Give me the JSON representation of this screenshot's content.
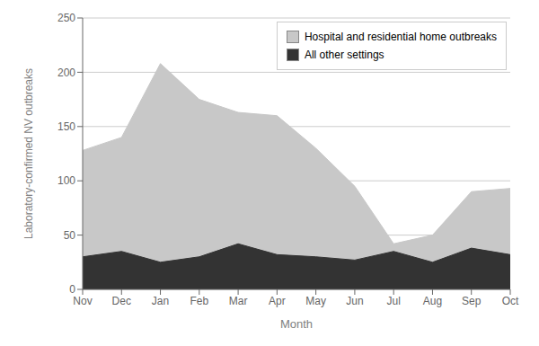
{
  "chart_data": {
    "type": "area",
    "xlabel": "Month",
    "ylabel": "Laboratory-confirmed NV outbreaks",
    "categories": [
      "Nov",
      "Dec",
      "Jan",
      "Feb",
      "Mar",
      "Apr",
      "May",
      "Jun",
      "Jul",
      "Aug",
      "Sep",
      "Oct"
    ],
    "series": [
      {
        "name": "Hospital and residential home outbreaks",
        "color": "#c8c8c8",
        "values": [
          128,
          140,
          208,
          175,
          163,
          160,
          130,
          95,
          42,
          50,
          90,
          93
        ]
      },
      {
        "name": "All other settings",
        "color": "#333333",
        "values": [
          30,
          35,
          25,
          30,
          42,
          32,
          30,
          27,
          35,
          25,
          38,
          32
        ]
      }
    ],
    "ylim": [
      0,
      250
    ],
    "yticks": [
      0,
      50,
      100,
      150,
      200,
      250
    ],
    "grid": true,
    "stacked": false,
    "legend": "upper right"
  }
}
